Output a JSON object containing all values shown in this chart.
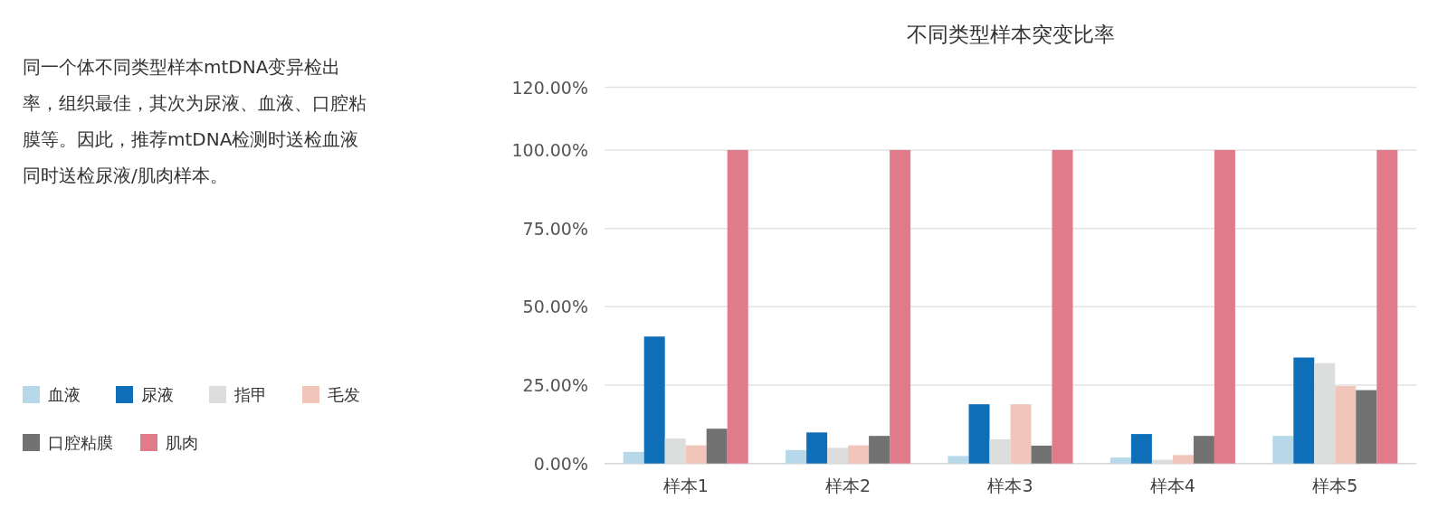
{
  "chart_data": {
    "type": "bar",
    "title": "不同类型样本突变比率",
    "annotations": [
      "同一个体不同类型样本mtDNA变异检出率，组织最佳，其次为尿液、血液、口腔粘膜等。因此，推荐mtDNA检测时送检血液同时送检尿液/肌肉样本。"
    ],
    "categories": [
      "样本1",
      "样本2",
      "样本3",
      "样本4",
      "样本5"
    ],
    "series": [
      {
        "name": "血液",
        "color": "#b7d8e8",
        "values": [
          3.7,
          4.3,
          2.4,
          1.9,
          8.8
        ]
      },
      {
        "name": "尿液",
        "color": "#0e6eb8",
        "values": [
          40.5,
          9.9,
          18.9,
          9.4,
          33.8
        ]
      },
      {
        "name": "指甲",
        "color": "#dcdedd",
        "values": [
          8.0,
          5.0,
          7.7,
          1.2,
          32.0
        ]
      },
      {
        "name": "毛发",
        "color": "#f2c5bb",
        "values": [
          5.8,
          5.8,
          18.9,
          2.7,
          24.7
        ]
      },
      {
        "name": "口腔粘膜",
        "color": "#727272",
        "values": [
          11.1,
          8.8,
          5.7,
          8.8,
          23.4
        ]
      },
      {
        "name": "肌肉",
        "color": "#e07b8b",
        "values": [
          100,
          100,
          100,
          100,
          100
        ]
      }
    ],
    "ylim": [
      0,
      120
    ],
    "yticks": [
      {
        "value": 0,
        "label": "0.00%"
      },
      {
        "value": 25,
        "label": "25.00%"
      },
      {
        "value": 50,
        "label": "50.00%"
      },
      {
        "value": 75,
        "label": "75.00%"
      },
      {
        "value": 100,
        "label": "100.00%"
      },
      {
        "value": 120,
        "label": "120.00%"
      }
    ],
    "grid": "y",
    "legend": "bottom left"
  }
}
